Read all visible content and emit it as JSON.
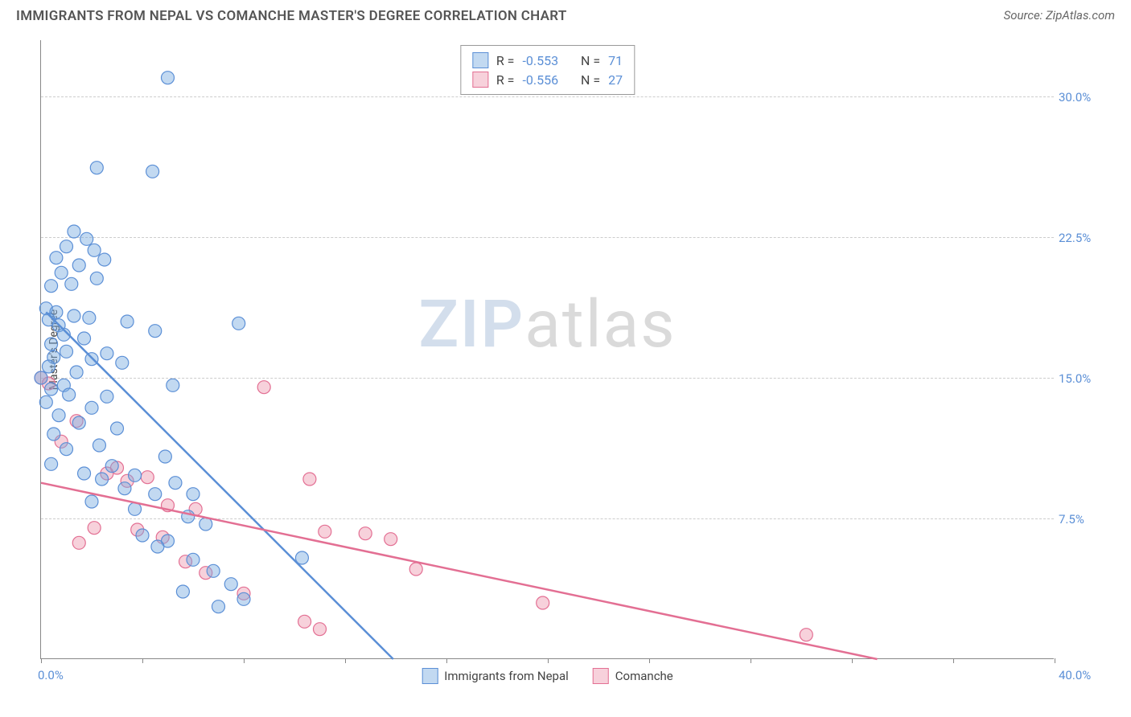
{
  "header": {
    "title": "IMMIGRANTS FROM NEPAL VS COMANCHE MASTER'S DEGREE CORRELATION CHART",
    "source_prefix": "Source: ",
    "source_name": "ZipAtlas.com"
  },
  "watermark": {
    "zip": "ZIP",
    "atlas": "atlas"
  },
  "chart": {
    "type": "scatter",
    "y_axis_title": "Master's Degree",
    "background_color": "#ffffff",
    "grid_color": "#cccccc",
    "axis_color": "#888888",
    "label_color": "#5b8fd6",
    "x_range": [
      0,
      40
    ],
    "y_range": [
      0,
      33
    ],
    "x_ticks": [
      0,
      4,
      8,
      12,
      16,
      20,
      24,
      28,
      32,
      36,
      40
    ],
    "x_label_min": "0.0%",
    "x_label_max": "40.0%",
    "y_gridlines": [
      {
        "v": 7.5,
        "label": "7.5%"
      },
      {
        "v": 15.0,
        "label": "15.0%"
      },
      {
        "v": 22.5,
        "label": "22.5%"
      },
      {
        "v": 30.0,
        "label": "30.0%"
      }
    ],
    "series": [
      {
        "name": "Immigrants from Nepal",
        "color_fill": "rgba(120,170,225,0.45)",
        "color_stroke": "#5b8fd6",
        "marker_r": 8,
        "R": "-0.553",
        "N": "71",
        "regression": {
          "x1": 0.2,
          "y1": 18.5,
          "x2": 13.9,
          "y2": 0
        },
        "points": [
          [
            5.0,
            31.0
          ],
          [
            2.2,
            26.2
          ],
          [
            4.4,
            26.0
          ],
          [
            1.3,
            22.8
          ],
          [
            1.8,
            22.4
          ],
          [
            1.0,
            22.0
          ],
          [
            2.1,
            21.8
          ],
          [
            0.6,
            21.4
          ],
          [
            2.5,
            21.3
          ],
          [
            1.5,
            21.0
          ],
          [
            0.8,
            20.6
          ],
          [
            2.2,
            20.3
          ],
          [
            1.2,
            20.0
          ],
          [
            0.4,
            19.9
          ],
          [
            0.2,
            18.7
          ],
          [
            0.6,
            18.5
          ],
          [
            1.3,
            18.3
          ],
          [
            1.9,
            18.2
          ],
          [
            0.3,
            18.1
          ],
          [
            3.4,
            18.0
          ],
          [
            7.8,
            17.9
          ],
          [
            0.7,
            17.8
          ],
          [
            4.5,
            17.5
          ],
          [
            0.9,
            17.3
          ],
          [
            1.7,
            17.1
          ],
          [
            0.4,
            16.8
          ],
          [
            1.0,
            16.4
          ],
          [
            2.6,
            16.3
          ],
          [
            0.5,
            16.1
          ],
          [
            2.0,
            16.0
          ],
          [
            3.2,
            15.8
          ],
          [
            0.3,
            15.6
          ],
          [
            1.4,
            15.3
          ],
          [
            0.0,
            15.0
          ],
          [
            0.9,
            14.6
          ],
          [
            5.2,
            14.6
          ],
          [
            0.4,
            14.4
          ],
          [
            1.1,
            14.1
          ],
          [
            2.6,
            14.0
          ],
          [
            0.2,
            13.7
          ],
          [
            2.0,
            13.4
          ],
          [
            0.7,
            13.0
          ],
          [
            1.5,
            12.6
          ],
          [
            3.0,
            12.3
          ],
          [
            0.5,
            12.0
          ],
          [
            2.3,
            11.4
          ],
          [
            1.0,
            11.2
          ],
          [
            4.9,
            10.8
          ],
          [
            0.4,
            10.4
          ],
          [
            2.8,
            10.3
          ],
          [
            1.7,
            9.9
          ],
          [
            3.7,
            9.8
          ],
          [
            2.4,
            9.6
          ],
          [
            5.3,
            9.4
          ],
          [
            3.3,
            9.1
          ],
          [
            4.5,
            8.8
          ],
          [
            6.0,
            8.8
          ],
          [
            2.0,
            8.4
          ],
          [
            3.7,
            8.0
          ],
          [
            5.8,
            7.6
          ],
          [
            6.5,
            7.2
          ],
          [
            4.0,
            6.6
          ],
          [
            5.0,
            6.3
          ],
          [
            4.6,
            6.0
          ],
          [
            10.3,
            5.4
          ],
          [
            6.0,
            5.3
          ],
          [
            6.8,
            4.7
          ],
          [
            7.5,
            4.0
          ],
          [
            5.6,
            3.6
          ],
          [
            8.0,
            3.2
          ],
          [
            7.0,
            2.8
          ]
        ]
      },
      {
        "name": "Comanche",
        "color_fill": "rgba(235,140,165,0.40)",
        "color_stroke": "#e36f93",
        "marker_r": 8,
        "R": "-0.556",
        "N": "27",
        "regression": {
          "x1": 0,
          "y1": 9.4,
          "x2": 33.0,
          "y2": 0
        },
        "points": [
          [
            0.0,
            15.0
          ],
          [
            0.3,
            14.7
          ],
          [
            8.8,
            14.5
          ],
          [
            1.4,
            12.7
          ],
          [
            0.8,
            11.6
          ],
          [
            3.0,
            10.2
          ],
          [
            2.6,
            9.9
          ],
          [
            4.2,
            9.7
          ],
          [
            3.4,
            9.5
          ],
          [
            10.6,
            9.6
          ],
          [
            5.0,
            8.2
          ],
          [
            6.1,
            8.0
          ],
          [
            2.1,
            7.0
          ],
          [
            3.8,
            6.9
          ],
          [
            11.2,
            6.8
          ],
          [
            12.8,
            6.7
          ],
          [
            4.8,
            6.5
          ],
          [
            13.8,
            6.4
          ],
          [
            1.5,
            6.2
          ],
          [
            5.7,
            5.2
          ],
          [
            6.5,
            4.6
          ],
          [
            14.8,
            4.8
          ],
          [
            8.0,
            3.5
          ],
          [
            19.8,
            3.0
          ],
          [
            10.4,
            2.0
          ],
          [
            11.0,
            1.6
          ],
          [
            30.2,
            1.3
          ]
        ]
      }
    ],
    "legend_box": {
      "R_label": "R =",
      "N_label": "N ="
    }
  }
}
